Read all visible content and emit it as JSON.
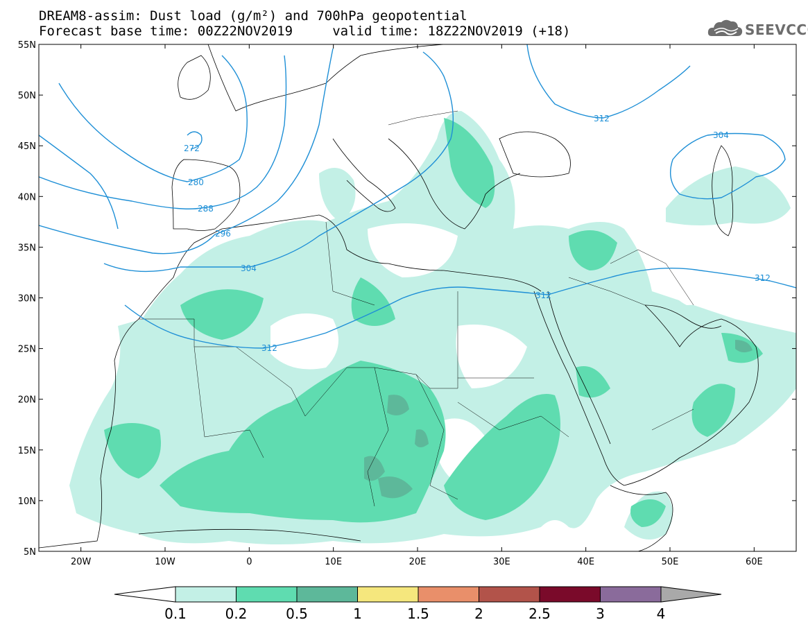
{
  "title_line1": "DREAM8-assim: Dust load (g/m²) and 700hPa geopotential",
  "title_line2": "Forecast base time: 00Z22NOV2019     valid time: 18Z22NOV2019 (+18)",
  "logo_text": "SEEVCCC",
  "map": {
    "lat_ticks": [
      "55N",
      "50N",
      "45N",
      "40N",
      "35N",
      "30N",
      "25N",
      "20N",
      "15N",
      "10N",
      "5N"
    ],
    "lon_ticks": [
      "20W",
      "10W",
      "0",
      "10E",
      "20E",
      "30E",
      "40E",
      "50E",
      "60E"
    ],
    "lon_range": [
      -25,
      65
    ],
    "lat_range": [
      5,
      55
    ]
  },
  "geopotential_contours": [
    {
      "label": "272"
    },
    {
      "label": "280"
    },
    {
      "label": "288"
    },
    {
      "label": "296"
    },
    {
      "label": "304"
    },
    {
      "label": "312"
    },
    {
      "label": "312"
    },
    {
      "label": "312"
    },
    {
      "label": "312"
    },
    {
      "label": "304"
    }
  ],
  "colorbar": {
    "labels": [
      "0.1",
      "0.2",
      "0.5",
      "1",
      "1.5",
      "2",
      "2.5",
      "3",
      "4"
    ],
    "colors": [
      "#c3f0e6",
      "#5fdcb0",
      "#5db89a",
      "#f5e77d",
      "#e98f6a",
      "#b2534a",
      "#7a0a2a",
      "#8a6b9b"
    ],
    "under_color": "#ffffff",
    "over_color": "#a9a9a9"
  },
  "colors": {
    "contour": "#1e8fd6",
    "dust_low": "#c3f0e6",
    "dust_mid": "#5fdcb0",
    "dust_high": "#5db89a"
  }
}
